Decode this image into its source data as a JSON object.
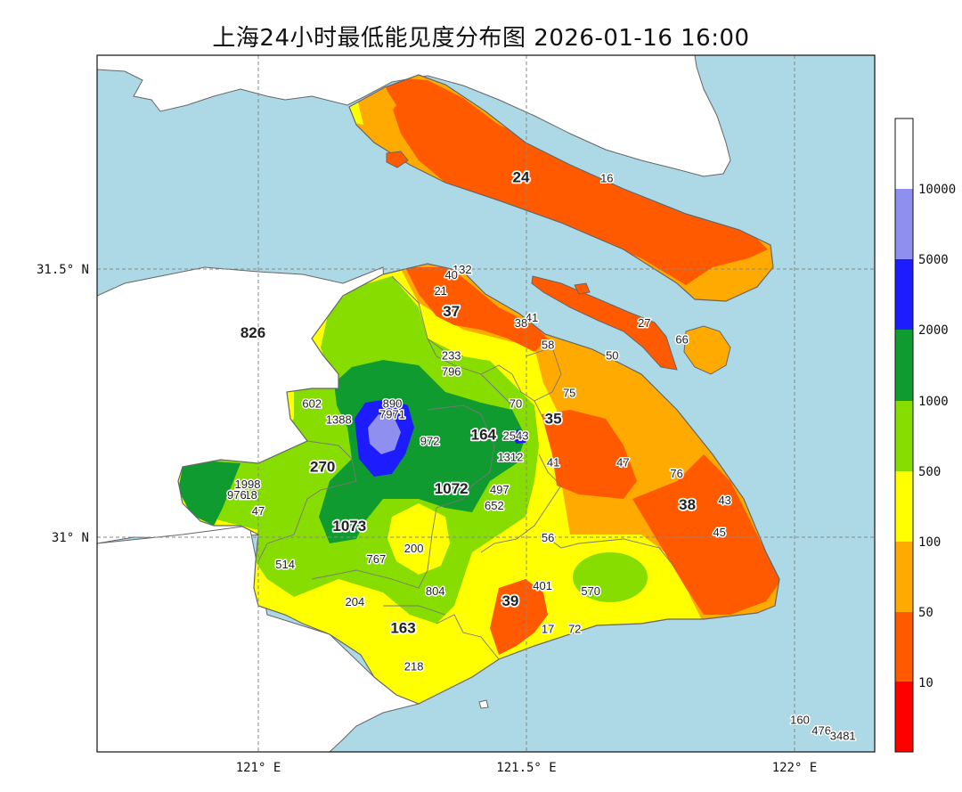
{
  "title": "上海24小时最低能见度分布图 2026-01-16 16:00",
  "axes": {
    "lon_labels": [
      "121° E",
      "121.5° E",
      "122° E"
    ],
    "lat_labels": [
      "31.5° N",
      "31° N"
    ],
    "lon_range": [
      120.7,
      122.15
    ],
    "lat_range": [
      30.6,
      31.9
    ]
  },
  "colors": {
    "sea": "#add8e6",
    "land_outside": "#ffffff",
    "boundary": "#666666",
    "grid": "#888888"
  },
  "colorbar": {
    "ticks": [
      "10",
      "50",
      "100",
      "500",
      "1000",
      "2000",
      "5000",
      "10000"
    ],
    "levels": [
      {
        "max": 10,
        "color": "#ff0000"
      },
      {
        "max": 50,
        "color": "#ff5a00"
      },
      {
        "max": 100,
        "color": "#ffaa00"
      },
      {
        "max": 500,
        "color": "#ffff00"
      },
      {
        "max": 1000,
        "color": "#88dd00"
      },
      {
        "max": 2000,
        "color": "#0f9b2f"
      },
      {
        "max": 5000,
        "color": "#1c1cff"
      },
      {
        "max": 10000,
        "color": "#8f8fef"
      },
      {
        "max": null,
        "color": "#ffffff"
      }
    ]
  },
  "stations": [
    {
      "v": "24",
      "lon": 121.49,
      "lat": 31.67,
      "big": true
    },
    {
      "v": "16",
      "lon": 121.65,
      "lat": 31.67
    },
    {
      "v": "132",
      "lon": 121.38,
      "lat": 31.5
    },
    {
      "v": "40",
      "lon": 121.36,
      "lat": 31.49
    },
    {
      "v": "21",
      "lon": 121.34,
      "lat": 31.46
    },
    {
      "v": "37",
      "lon": 121.36,
      "lat": 31.42,
      "big": true
    },
    {
      "v": "41",
      "lon": 121.51,
      "lat": 31.41
    },
    {
      "v": "38",
      "lon": 121.49,
      "lat": 31.4
    },
    {
      "v": "27",
      "lon": 121.72,
      "lat": 31.4
    },
    {
      "v": "66",
      "lon": 121.79,
      "lat": 31.37
    },
    {
      "v": "58",
      "lon": 121.54,
      "lat": 31.36
    },
    {
      "v": "826",
      "lon": 120.99,
      "lat": 31.38,
      "big": true
    },
    {
      "v": "233",
      "lon": 121.36,
      "lat": 31.34
    },
    {
      "v": "50",
      "lon": 121.66,
      "lat": 31.34
    },
    {
      "v": "796",
      "lon": 121.36,
      "lat": 31.31
    },
    {
      "v": "75",
      "lon": 121.58,
      "lat": 31.27
    },
    {
      "v": "602",
      "lon": 121.1,
      "lat": 31.25
    },
    {
      "v": "890",
      "lon": 121.25,
      "lat": 31.25
    },
    {
      "v": "70",
      "lon": 121.48,
      "lat": 31.25
    },
    {
      "v": "35",
      "lon": 121.55,
      "lat": 31.22,
      "big": true
    },
    {
      "v": "7971",
      "lon": 121.25,
      "lat": 31.23
    },
    {
      "v": "1388",
      "lon": 121.15,
      "lat": 31.22
    },
    {
      "v": "164",
      "lon": 121.42,
      "lat": 31.19,
      "big": true
    },
    {
      "v": "2543",
      "lon": 121.48,
      "lat": 31.19
    },
    {
      "v": "972",
      "lon": 121.32,
      "lat": 31.18
    },
    {
      "v": "1312",
      "lon": 121.47,
      "lat": 31.15
    },
    {
      "v": "41",
      "lon": 121.55,
      "lat": 31.14
    },
    {
      "v": "47",
      "lon": 121.68,
      "lat": 31.14
    },
    {
      "v": "270",
      "lon": 121.12,
      "lat": 31.13,
      "big": true
    },
    {
      "v": "76",
      "lon": 121.78,
      "lat": 31.12
    },
    {
      "v": "1998",
      "lon": 120.98,
      "lat": 31.1
    },
    {
      "v": "1072",
      "lon": 121.36,
      "lat": 31.09,
      "big": true
    },
    {
      "v": "497",
      "lon": 121.45,
      "lat": 31.09
    },
    {
      "v": "718",
      "lon": 120.98,
      "lat": 31.08
    },
    {
      "v": "976",
      "lon": 120.96,
      "lat": 31.08
    },
    {
      "v": "43",
      "lon": 121.87,
      "lat": 31.07
    },
    {
      "v": "652",
      "lon": 121.44,
      "lat": 31.06
    },
    {
      "v": "38",
      "lon": 121.8,
      "lat": 31.06,
      "big": true
    },
    {
      "v": "47",
      "lon": 121.0,
      "lat": 31.05
    },
    {
      "v": "1073",
      "lon": 121.17,
      "lat": 31.02,
      "big": true
    },
    {
      "v": "45",
      "lon": 121.86,
      "lat": 31.01
    },
    {
      "v": "56",
      "lon": 121.54,
      "lat": 31.0
    },
    {
      "v": "200",
      "lon": 121.29,
      "lat": 30.98
    },
    {
      "v": "767",
      "lon": 121.22,
      "lat": 30.96
    },
    {
      "v": "514",
      "lon": 121.05,
      "lat": 30.95
    },
    {
      "v": "401",
      "lon": 121.53,
      "lat": 30.91
    },
    {
      "v": "570",
      "lon": 121.62,
      "lat": 30.9
    },
    {
      "v": "804",
      "lon": 121.33,
      "lat": 30.9
    },
    {
      "v": "39",
      "lon": 121.47,
      "lat": 30.88,
      "big": true
    },
    {
      "v": "204",
      "lon": 121.18,
      "lat": 30.88
    },
    {
      "v": "163",
      "lon": 121.27,
      "lat": 30.83,
      "big": true
    },
    {
      "v": "17",
      "lon": 121.54,
      "lat": 30.83
    },
    {
      "v": "72",
      "lon": 121.59,
      "lat": 30.83
    },
    {
      "v": "218",
      "lon": 121.29,
      "lat": 30.76
    },
    {
      "v": "160",
      "lon": 122.01,
      "lat": 30.66
    },
    {
      "v": "476",
      "lon": 122.05,
      "lat": 30.64
    },
    {
      "v": "3481",
      "lon": 122.09,
      "lat": 30.63
    }
  ]
}
